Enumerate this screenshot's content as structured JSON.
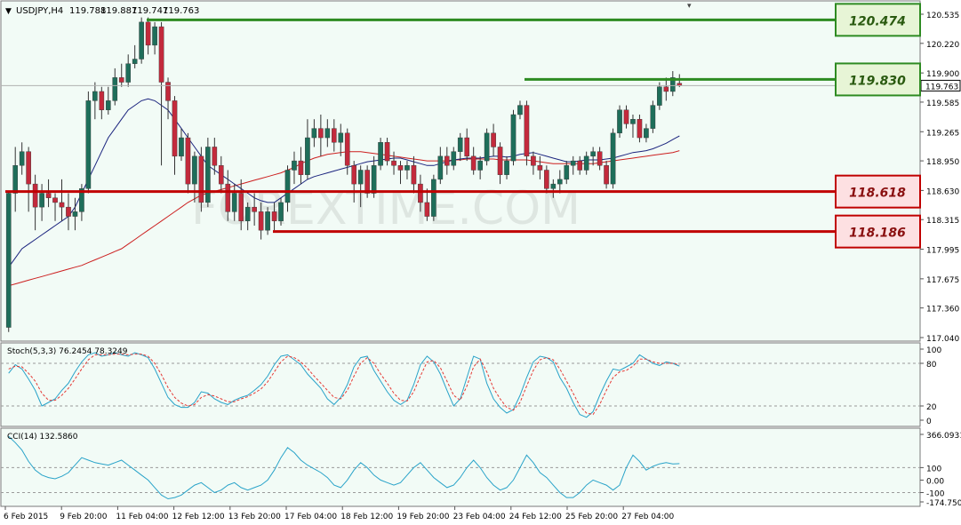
{
  "header": {
    "symbol": "USDJPY,H4",
    "open": "119.788",
    "high": "119.887",
    "low": "119.747",
    "close": "119.763"
  },
  "watermark": "FOREXTIME.COM",
  "colors": {
    "background": "#f2fbf6",
    "bull": "#1e6e5a",
    "bear": "#c32a3c",
    "support": "#c00000",
    "resistance": "#2e8b22",
    "sma_fast": "#1a237e",
    "sma_slow": "#cc1f1f",
    "osc_main": "#29a3c9",
    "osc_signal": "#e53935"
  },
  "price_axis": {
    "ticks": [
      "120.535",
      "120.220",
      "119.900",
      "119.585",
      "119.265",
      "118.950",
      "118.630",
      "118.315",
      "117.995",
      "117.675",
      "117.360",
      "117.040"
    ],
    "current_price": "119.763"
  },
  "levels": [
    {
      "value": 120.474,
      "label": "120.474",
      "kind": "resistance"
    },
    {
      "value": 119.83,
      "label": "119.830",
      "kind": "resistance"
    },
    {
      "value": 118.618,
      "label": "118.618",
      "kind": "support"
    },
    {
      "value": 118.186,
      "label": "118.186",
      "kind": "support"
    }
  ],
  "stoch": {
    "label": "Stoch(5,3,3) 76.2454 78.3249",
    "ticks": [
      "100",
      "80",
      "20",
      "0"
    ],
    "main": [
      66,
      78,
      72,
      58,
      42,
      20,
      25,
      30,
      42,
      52,
      68,
      82,
      92,
      95,
      90,
      92,
      95,
      92,
      90,
      95,
      92,
      88,
      72,
      52,
      32,
      22,
      18,
      18,
      25,
      40,
      38,
      30,
      25,
      22,
      28,
      32,
      35,
      42,
      50,
      62,
      78,
      90,
      92,
      85,
      78,
      65,
      55,
      45,
      30,
      22,
      32,
      50,
      75,
      88,
      90,
      70,
      55,
      40,
      28,
      22,
      28,
      50,
      78,
      90,
      82,
      65,
      42,
      20,
      30,
      60,
      90,
      86,
      52,
      30,
      18,
      10,
      15,
      35,
      60,
      82,
      90,
      88,
      82,
      60,
      45,
      25,
      8,
      4,
      12,
      35,
      55,
      72,
      70,
      75,
      80,
      92,
      86,
      80,
      77,
      82,
      80,
      76
    ],
    "signal": [
      72,
      76,
      75,
      66,
      55,
      38,
      28,
      28,
      35,
      45,
      58,
      72,
      85,
      92,
      92,
      92,
      93,
      93,
      92,
      93,
      93,
      90,
      80,
      64,
      46,
      32,
      24,
      20,
      22,
      32,
      36,
      34,
      30,
      26,
      26,
      30,
      33,
      38,
      44,
      54,
      68,
      82,
      90,
      88,
      82,
      73,
      62,
      52,
      42,
      32,
      30,
      42,
      62,
      80,
      88,
      80,
      65,
      52,
      38,
      28,
      27,
      40,
      62,
      82,
      84,
      74,
      55,
      35,
      28,
      48,
      75,
      86,
      68,
      45,
      30,
      18,
      14,
      25,
      48,
      70,
      85,
      88,
      85,
      72,
      55,
      38,
      20,
      10,
      8,
      22,
      42,
      60,
      68,
      70,
      76,
      86,
      86,
      82,
      80,
      80,
      80,
      78
    ]
  },
  "cci": {
    "label": "CCI(14) 132.5860",
    "ticks": [
      "366.0931",
      "100",
      "0.00",
      "-100",
      "-174.7509"
    ],
    "values": [
      350,
      300,
      240,
      150,
      80,
      40,
      20,
      10,
      30,
      60,
      120,
      180,
      160,
      140,
      130,
      120,
      140,
      160,
      120,
      80,
      40,
      0,
      -60,
      -120,
      -150,
      -140,
      -120,
      -80,
      -40,
      -20,
      -60,
      -100,
      -80,
      -40,
      -20,
      -60,
      -80,
      -60,
      -40,
      0,
      80,
      180,
      260,
      220,
      160,
      120,
      90,
      60,
      20,
      -40,
      -60,
      0,
      80,
      140,
      100,
      40,
      0,
      -20,
      -40,
      -20,
      40,
      100,
      140,
      80,
      20,
      -20,
      -60,
      -40,
      20,
      100,
      160,
      100,
      20,
      -40,
      -80,
      -60,
      0,
      100,
      200,
      140,
      60,
      20,
      -40,
      -100,
      -140,
      -140,
      -100,
      -40,
      0,
      -20,
      -40,
      -80,
      -40,
      100,
      200,
      150,
      80,
      110,
      130,
      140,
      130,
      132
    ]
  },
  "time_axis": {
    "labels": [
      "6 Feb 2015",
      "9 Feb 20:00",
      "11 Feb 04:00",
      "12 Feb 12:00",
      "13 Feb 20:00",
      "17 Feb 04:00",
      "18 Feb 12:00",
      "19 Feb 20:00",
      "23 Feb 04:00",
      "24 Feb 12:00",
      "25 Feb 20:00",
      "27 Feb 04:00"
    ]
  },
  "chart_data": {
    "type": "candlestick",
    "title": "USDJPY,H4",
    "y_range": [
      117.04,
      120.535
    ],
    "candles": [
      [
        117.15,
        118.62,
        117.1,
        118.6
      ],
      [
        118.6,
        119.1,
        118.4,
        118.9
      ],
      [
        118.9,
        119.15,
        118.8,
        119.05
      ],
      [
        119.05,
        119.1,
        118.4,
        118.7
      ],
      [
        118.7,
        118.8,
        118.2,
        118.45
      ],
      [
        118.45,
        118.7,
        118.3,
        118.6
      ],
      [
        118.6,
        118.75,
        118.45,
        118.55
      ],
      [
        118.55,
        118.6,
        118.3,
        118.5
      ],
      [
        118.5,
        118.75,
        118.3,
        118.45
      ],
      [
        118.45,
        118.6,
        118.2,
        118.35
      ],
      [
        118.35,
        118.55,
        118.2,
        118.4
      ],
      [
        118.4,
        118.7,
        118.3,
        118.65
      ],
      [
        118.65,
        119.7,
        118.6,
        119.6
      ],
      [
        119.6,
        119.8,
        119.4,
        119.7
      ],
      [
        119.7,
        119.75,
        119.4,
        119.5
      ],
      [
        119.5,
        119.75,
        119.45,
        119.6
      ],
      [
        119.6,
        119.95,
        119.55,
        119.85
      ],
      [
        119.85,
        120.0,
        119.75,
        119.8
      ],
      [
        119.8,
        120.1,
        119.75,
        120.0
      ],
      [
        120.0,
        120.2,
        119.95,
        120.05
      ],
      [
        120.05,
        120.5,
        120.0,
        120.45
      ],
      [
        120.45,
        120.5,
        120.1,
        120.2
      ],
      [
        120.2,
        120.45,
        120.1,
        120.4
      ],
      [
        120.4,
        120.45,
        118.9,
        119.8
      ],
      [
        119.8,
        119.85,
        119.4,
        119.6
      ],
      [
        119.6,
        119.65,
        118.8,
        119.0
      ],
      [
        119.0,
        119.3,
        118.95,
        119.2
      ],
      [
        119.2,
        119.25,
        118.6,
        118.7
      ],
      [
        118.7,
        119.05,
        118.5,
        119.0
      ],
      [
        119.0,
        119.1,
        118.4,
        118.5
      ],
      [
        118.5,
        119.2,
        118.45,
        119.1
      ],
      [
        119.1,
        119.2,
        118.8,
        118.9
      ],
      [
        118.9,
        119.0,
        118.6,
        118.7
      ],
      [
        118.7,
        118.85,
        118.3,
        118.4
      ],
      [
        118.4,
        118.7,
        118.3,
        118.6
      ],
      [
        118.6,
        118.75,
        118.2,
        118.3
      ],
      [
        118.3,
        118.5,
        118.2,
        118.45
      ],
      [
        118.45,
        118.6,
        118.25,
        118.4
      ],
      [
        118.4,
        118.5,
        118.1,
        118.2
      ],
      [
        118.2,
        118.45,
        118.15,
        118.4
      ],
      [
        118.4,
        118.5,
        118.2,
        118.3
      ],
      [
        118.3,
        118.55,
        118.25,
        118.5
      ],
      [
        118.5,
        118.9,
        118.4,
        118.85
      ],
      [
        118.85,
        119.05,
        118.7,
        118.95
      ],
      [
        118.95,
        119.1,
        118.7,
        118.8
      ],
      [
        118.8,
        119.4,
        118.75,
        119.2
      ],
      [
        119.2,
        119.4,
        119.1,
        119.3
      ],
      [
        119.3,
        119.45,
        119.0,
        119.2
      ],
      [
        119.2,
        119.4,
        119.1,
        119.3
      ],
      [
        119.3,
        119.4,
        119.05,
        119.15
      ],
      [
        119.15,
        119.35,
        119.0,
        119.25
      ],
      [
        119.25,
        119.3,
        118.8,
        118.9
      ],
      [
        118.9,
        118.95,
        118.5,
        118.7
      ],
      [
        118.7,
        118.9,
        118.45,
        118.85
      ],
      [
        118.85,
        118.9,
        118.55,
        118.6
      ],
      [
        118.6,
        119.0,
        118.55,
        118.9
      ],
      [
        118.9,
        119.2,
        118.85,
        119.15
      ],
      [
        119.15,
        119.2,
        118.9,
        118.95
      ],
      [
        118.95,
        119.05,
        118.8,
        118.9
      ],
      [
        118.9,
        118.95,
        118.7,
        118.85
      ],
      [
        118.85,
        118.95,
        118.75,
        118.9
      ],
      [
        118.9,
        119.0,
        118.6,
        118.7
      ],
      [
        118.7,
        118.8,
        118.4,
        118.5
      ],
      [
        118.5,
        118.65,
        118.3,
        118.35
      ],
      [
        118.35,
        118.8,
        118.3,
        118.75
      ],
      [
        118.75,
        119.1,
        118.7,
        119.0
      ],
      [
        119.0,
        119.1,
        118.8,
        118.9
      ],
      [
        118.9,
        119.1,
        118.85,
        119.05
      ],
      [
        119.05,
        119.25,
        118.95,
        119.2
      ],
      [
        119.2,
        119.3,
        118.95,
        119.0
      ],
      [
        119.0,
        119.1,
        118.8,
        118.85
      ],
      [
        118.85,
        119.0,
        118.75,
        118.95
      ],
      [
        118.95,
        119.3,
        118.9,
        119.25
      ],
      [
        119.25,
        119.35,
        119.0,
        119.1
      ],
      [
        119.1,
        119.15,
        118.7,
        118.8
      ],
      [
        118.8,
        119.0,
        118.75,
        118.95
      ],
      [
        118.95,
        119.5,
        118.9,
        119.45
      ],
      [
        119.45,
        119.6,
        119.4,
        119.55
      ],
      [
        119.55,
        119.6,
        118.9,
        119.0
      ],
      [
        119.0,
        119.05,
        118.8,
        118.9
      ],
      [
        118.9,
        119.0,
        118.75,
        118.85
      ],
      [
        118.85,
        118.9,
        118.6,
        118.65
      ],
      [
        118.65,
        118.75,
        118.55,
        118.7
      ],
      [
        118.7,
        118.85,
        118.6,
        118.75
      ],
      [
        118.75,
        118.95,
        118.7,
        118.9
      ],
      [
        118.9,
        119.0,
        118.8,
        118.95
      ],
      [
        118.95,
        119.0,
        118.8,
        118.85
      ],
      [
        118.85,
        119.05,
        118.8,
        119.0
      ],
      [
        119.0,
        119.1,
        118.9,
        119.05
      ],
      [
        119.05,
        119.1,
        118.85,
        118.9
      ],
      [
        118.9,
        118.95,
        118.65,
        118.7
      ],
      [
        118.7,
        119.3,
        118.65,
        119.25
      ],
      [
        119.25,
        119.55,
        119.2,
        119.5
      ],
      [
        119.5,
        119.55,
        119.3,
        119.35
      ],
      [
        119.35,
        119.45,
        119.2,
        119.4
      ],
      [
        119.4,
        119.45,
        119.15,
        119.2
      ],
      [
        119.2,
        119.35,
        119.15,
        119.3
      ],
      [
        119.3,
        119.6,
        119.25,
        119.55
      ],
      [
        119.55,
        119.8,
        119.5,
        119.75
      ],
      [
        119.75,
        119.85,
        119.6,
        119.7
      ],
      [
        119.7,
        119.92,
        119.65,
        119.85
      ],
      [
        119.788,
        119.887,
        119.747,
        119.763
      ]
    ],
    "sma_fast": [
      117.8,
      117.9,
      118.0,
      118.05,
      118.1,
      118.15,
      118.2,
      118.25,
      118.3,
      118.35,
      118.45,
      118.6,
      118.75,
      118.9,
      119.05,
      119.2,
      119.3,
      119.4,
      119.5,
      119.55,
      119.6,
      119.62,
      119.6,
      119.55,
      119.5,
      119.4,
      119.3,
      119.2,
      119.1,
      119.0,
      118.9,
      118.85,
      118.8,
      118.75,
      118.7,
      118.65,
      118.6,
      118.55,
      118.52,
      118.5,
      118.5,
      118.55,
      118.6,
      118.65,
      118.7,
      118.75,
      118.78,
      118.8,
      118.82,
      118.84,
      118.86,
      118.88,
      118.9,
      118.92,
      118.94,
      118.95,
      118.96,
      118.97,
      118.98,
      118.98,
      118.96,
      118.94,
      118.92,
      118.9,
      118.9,
      118.92,
      118.94,
      118.96,
      118.97,
      118.98,
      118.98,
      118.98,
      118.99,
      119.0,
      119.0,
      118.99,
      119.0,
      119.02,
      119.03,
      119.04,
      119.02,
      119.0,
      118.98,
      118.96,
      118.94,
      118.94,
      118.95,
      118.96,
      118.96,
      118.96,
      118.97,
      118.98,
      119.0,
      119.02,
      119.04,
      119.05,
      119.06,
      119.08,
      119.11,
      119.14,
      119.18,
      119.22
    ],
    "sma_slow": [
      117.6,
      117.62,
      117.64,
      117.66,
      117.68,
      117.7,
      117.72,
      117.74,
      117.76,
      117.78,
      117.8,
      117.82,
      117.85,
      117.88,
      117.91,
      117.94,
      117.97,
      118.0,
      118.05,
      118.1,
      118.15,
      118.2,
      118.25,
      118.3,
      118.35,
      118.4,
      118.45,
      118.5,
      118.54,
      118.58,
      118.6,
      118.62,
      118.64,
      118.66,
      118.68,
      118.7,
      118.72,
      118.74,
      118.76,
      118.78,
      118.8,
      118.82,
      118.85,
      118.88,
      118.92,
      118.95,
      118.98,
      119.0,
      119.02,
      119.03,
      119.04,
      119.05,
      119.05,
      119.05,
      119.04,
      119.03,
      119.02,
      119.01,
      119.0,
      118.99,
      118.98,
      118.97,
      118.96,
      118.95,
      118.95,
      118.95,
      118.95,
      118.96,
      118.96,
      118.97,
      118.97,
      118.97,
      118.97,
      118.97,
      118.96,
      118.96,
      118.96,
      118.96,
      118.96,
      118.95,
      118.94,
      118.93,
      118.92,
      118.92,
      118.92,
      118.92,
      118.92,
      118.92,
      118.92,
      118.93,
      118.94,
      118.95,
      118.96,
      118.97,
      118.98,
      118.99,
      119.0,
      119.01,
      119.02,
      119.03,
      119.04,
      119.06
    ]
  }
}
